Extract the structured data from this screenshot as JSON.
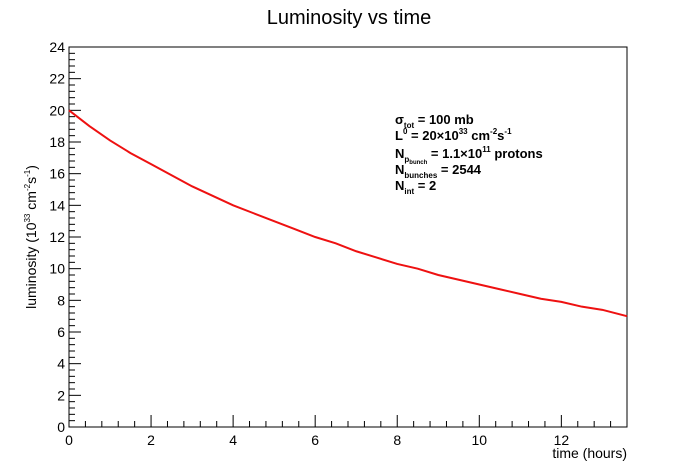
{
  "chart_data": {
    "type": "line",
    "title": "Luminosity vs time",
    "xlabel": "time (hours)",
    "ylabel_prefix": "luminosity (10",
    "ylabel_exp1": "33",
    "ylabel_mid": " cm",
    "ylabel_exp2": "-2",
    "ylabel_s": "s",
    "ylabel_exp3": "-1",
    "ylabel_suffix": ")",
    "xlim": [
      0,
      13.6
    ],
    "ylim": [
      0,
      24
    ],
    "x_ticks": [
      "0",
      "2",
      "4",
      "6",
      "8",
      "10",
      "12"
    ],
    "y_ticks": [
      "0",
      "2",
      "4",
      "6",
      "8",
      "10",
      "12",
      "14",
      "16",
      "18",
      "20",
      "22",
      "24"
    ],
    "line_color": "#ee1111",
    "series": [
      {
        "x": [
          0,
          0.5,
          1,
          1.5,
          2,
          2.5,
          3,
          3.5,
          4,
          4.5,
          5,
          5.5,
          6,
          6.5,
          7,
          7.5,
          8,
          8.5,
          9,
          9.5,
          10,
          10.5,
          11,
          11.5,
          12,
          12.5,
          13,
          13.6
        ],
        "y": [
          20.0,
          19.0,
          18.1,
          17.3,
          16.6,
          15.9,
          15.2,
          14.6,
          14.0,
          13.5,
          13.0,
          12.5,
          12.0,
          11.6,
          11.1,
          10.7,
          10.3,
          10.0,
          9.6,
          9.3,
          9.0,
          8.7,
          8.4,
          8.1,
          7.9,
          7.6,
          7.4,
          7.0
        ]
      }
    ]
  },
  "annotation": {
    "line1_sym": "σ",
    "line1_sub": "tot",
    "line1_text": " = 100 mb",
    "line2_sym": "L",
    "line2_sup": "0",
    "line2_text": " =  20×10",
    "line2_exp": "33",
    "line2_unit": " cm",
    "line2_unit_exp1": "-2",
    "line2_unit_s": "s",
    "line2_unit_exp2": "-1",
    "line3_sym": "N",
    "line3_sub": "p",
    "line3_subsub": "bunch",
    "line3_text": " = 1.1×10",
    "line3_exp": "11",
    "line3_tail": " protons",
    "line4_sym": "N",
    "line4_sub": "bunches",
    "line4_text": " = 2544",
    "line5_sym": "N",
    "line5_sub": "int",
    "line5_text": " =   2"
  }
}
